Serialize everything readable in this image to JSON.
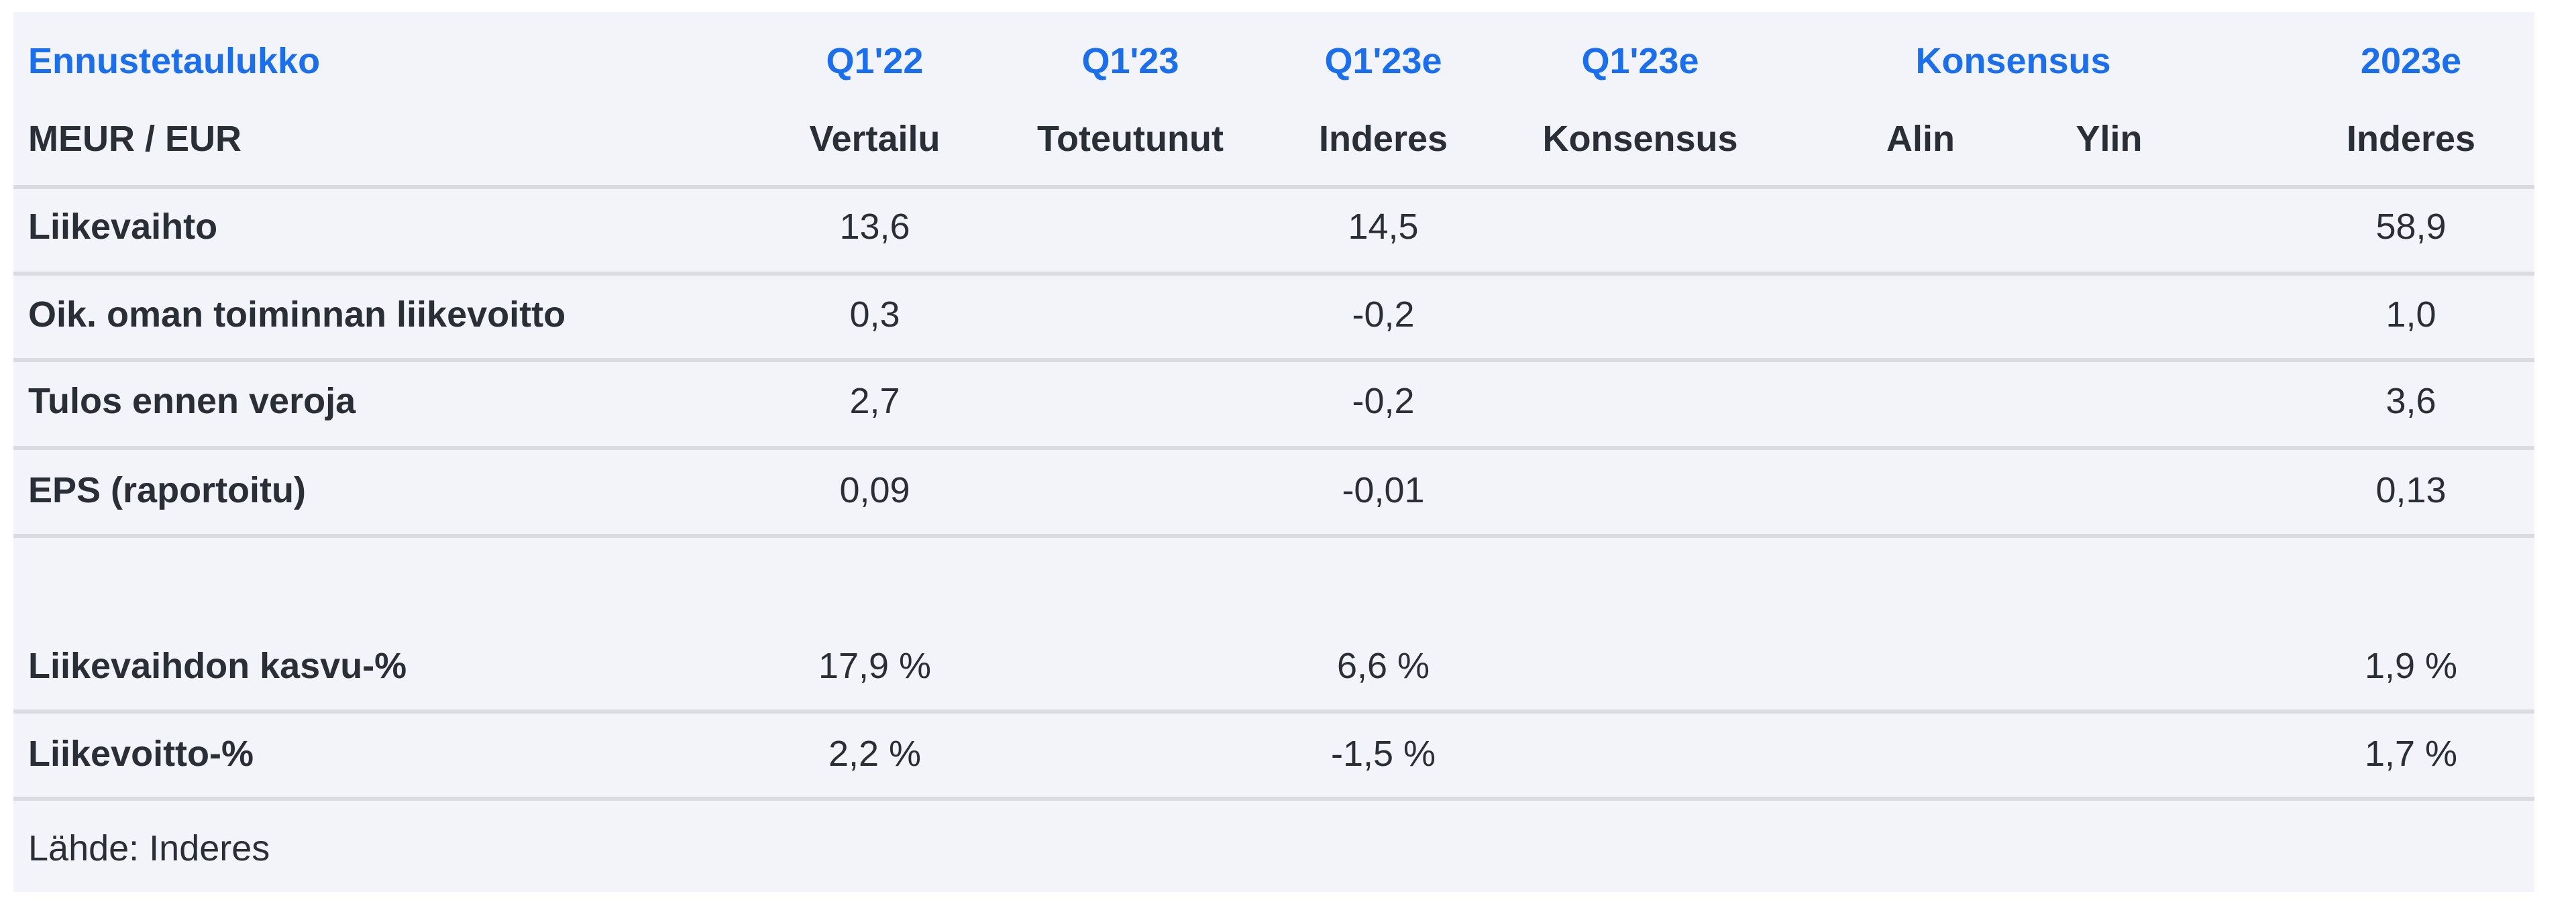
{
  "table": {
    "title": "Ennustetaulukko",
    "unit_label": "MEUR / EUR",
    "header_top": [
      "Q1'22",
      "Q1'23",
      "Q1'23e",
      "Q1'23e",
      "Konsensus",
      "2023e"
    ],
    "header_bottom": [
      "Vertailu",
      "Toteutunut",
      "Inderes",
      "Konsensus",
      "Alin",
      "Ylin",
      "Inderes"
    ],
    "rows": [
      {
        "label": "Liikevaihto",
        "values": [
          "13,6",
          "",
          "14,5",
          "",
          "",
          "",
          "58,9"
        ]
      },
      {
        "label": "Oik. oman toiminnan liikevoitto",
        "values": [
          "0,3",
          "",
          "-0,2",
          "",
          "",
          "",
          "1,0"
        ]
      },
      {
        "label": "Tulos ennen veroja",
        "values": [
          "2,7",
          "",
          "-0,2",
          "",
          "",
          "",
          "3,6"
        ]
      },
      {
        "label": "EPS (raportoitu)",
        "values": [
          "0,09",
          "",
          "-0,01",
          "",
          "",
          "",
          "0,13"
        ]
      },
      {
        "label": "Liikevaihdon kasvu-%",
        "values": [
          "17,9 %",
          "",
          "6,6 %",
          "",
          "",
          "",
          "1,9 %"
        ]
      },
      {
        "label": "Liikevoitto-%",
        "values": [
          "2,2 %",
          "",
          "-1,5 %",
          "",
          "",
          "",
          "1,7 %"
        ]
      }
    ],
    "source": "Lähde: Inderes"
  },
  "colors": {
    "accent": "#1a6ff0",
    "text": "#2a2e36",
    "background": "#f3f4f9",
    "rule": "#d9dbe1"
  }
}
